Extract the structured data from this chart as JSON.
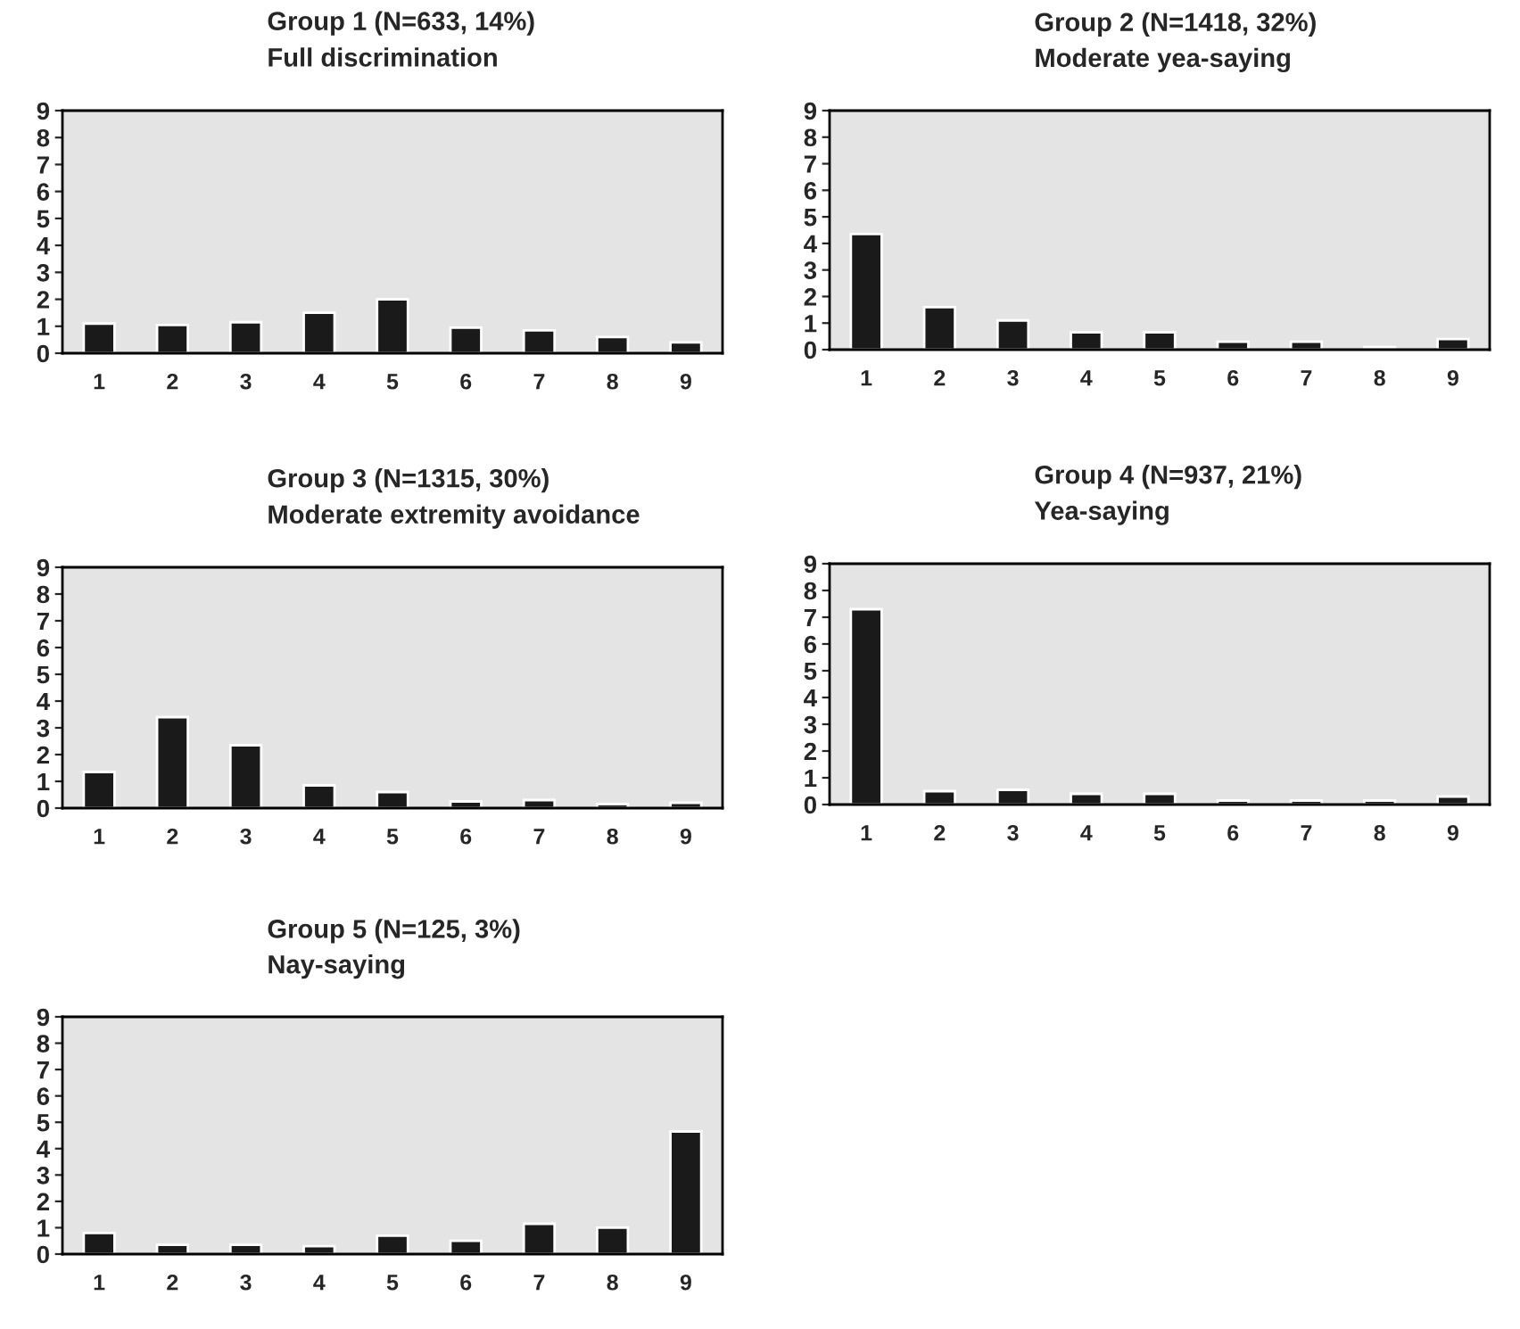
{
  "chart_data": [
    {
      "type": "bar",
      "title": "Group 1 (N=633, 14%)",
      "subtitle": "Full discrimination",
      "categories": [
        "1",
        "2",
        "3",
        "4",
        "5",
        "6",
        "7",
        "8",
        "9"
      ],
      "values": [
        1.1,
        1.05,
        1.15,
        1.5,
        2.0,
        0.95,
        0.85,
        0.6,
        0.4
      ],
      "color": "#1a1a1a",
      "ylim": [
        0,
        9
      ],
      "yticks": [
        0,
        1,
        2,
        3,
        4,
        5,
        6,
        7,
        8,
        9
      ],
      "grid": false,
      "legend": false
    },
    {
      "type": "bar",
      "title": "Group 2 (N=1418, 32%)",
      "subtitle": "Moderate yea-saying",
      "categories": [
        "1",
        "2",
        "3",
        "4",
        "5",
        "6",
        "7",
        "8",
        "9"
      ],
      "values": [
        4.35,
        1.6,
        1.1,
        0.65,
        0.65,
        0.3,
        0.3,
        0.1,
        0.4
      ],
      "color": "#1a1a1a",
      "ylim": [
        0,
        9
      ],
      "yticks": [
        0,
        1,
        2,
        3,
        4,
        5,
        6,
        7,
        8,
        9
      ],
      "grid": false,
      "legend": false
    },
    {
      "type": "bar",
      "title": "Group 3 (N=1315, 30%)",
      "subtitle": "Moderate extremity avoidance",
      "categories": [
        "1",
        "2",
        "3",
        "4",
        "5",
        "6",
        "7",
        "8",
        "9"
      ],
      "values": [
        1.35,
        3.4,
        2.35,
        0.85,
        0.6,
        0.25,
        0.3,
        0.15,
        0.2
      ],
      "color": "#1a1a1a",
      "ylim": [
        0,
        9
      ],
      "yticks": [
        0,
        1,
        2,
        3,
        4,
        5,
        6,
        7,
        8,
        9
      ],
      "grid": false,
      "legend": false
    },
    {
      "type": "bar",
      "title": "Group 4 (N=937, 21%)",
      "subtitle": "Yea-saying",
      "categories": [
        "1",
        "2",
        "3",
        "4",
        "5",
        "6",
        "7",
        "8",
        "9"
      ],
      "values": [
        7.3,
        0.5,
        0.55,
        0.4,
        0.4,
        0.15,
        0.15,
        0.15,
        0.3
      ],
      "color": "#1a1a1a",
      "ylim": [
        0,
        9
      ],
      "yticks": [
        0,
        1,
        2,
        3,
        4,
        5,
        6,
        7,
        8,
        9
      ],
      "grid": false,
      "legend": false
    },
    {
      "type": "bar",
      "title": "Group 5 (N=125, 3%)",
      "subtitle": "Nay-saying",
      "categories": [
        "1",
        "2",
        "3",
        "4",
        "5",
        "6",
        "7",
        "8",
        "9"
      ],
      "values": [
        0.8,
        0.35,
        0.35,
        0.3,
        0.7,
        0.5,
        1.15,
        1.0,
        4.65
      ],
      "color": "#1a1a1a",
      "ylim": [
        0,
        9
      ],
      "yticks": [
        0,
        1,
        2,
        3,
        4,
        5,
        6,
        7,
        8,
        9
      ],
      "grid": false,
      "legend": false
    }
  ]
}
